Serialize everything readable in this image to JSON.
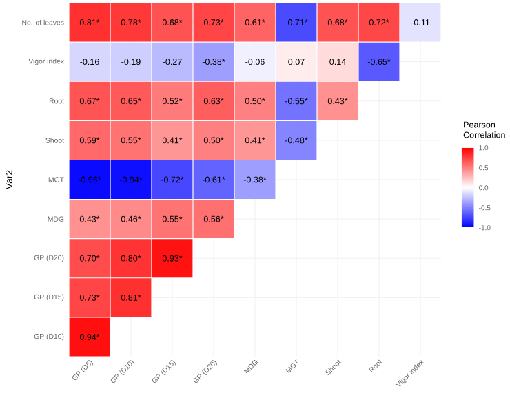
{
  "chart_data": {
    "type": "heatmap",
    "ylabel": "Var2",
    "clabel": "Pearson Correlation",
    "grid": true,
    "categories": [
      "GP (D5)",
      "GP (D10)",
      "GP (D15)",
      "GP (D20)",
      "MDG",
      "MGT",
      "Shoot",
      "Root",
      "Vigor index"
    ],
    "y_categories": [
      "No. of leaves",
      "Vigor index",
      "Root",
      "Shoot",
      "MGT",
      "MDG",
      "GP (D20)",
      "GP (D15)",
      "GP (D10)"
    ],
    "cells": [
      [
        0.81,
        0.78,
        0.68,
        0.73,
        0.61,
        -0.71,
        0.68,
        0.72,
        -0.11
      ],
      [
        -0.16,
        -0.19,
        -0.27,
        -0.38,
        -0.06,
        0.07,
        0.14,
        -0.65,
        null
      ],
      [
        0.67,
        0.65,
        0.52,
        0.63,
        0.5,
        -0.55,
        0.43,
        null,
        null
      ],
      [
        0.59,
        0.55,
        0.41,
        0.5,
        0.41,
        -0.48,
        null,
        null,
        null
      ],
      [
        -0.96,
        -0.94,
        -0.72,
        -0.61,
        -0.38,
        null,
        null,
        null,
        null
      ],
      [
        0.43,
        0.46,
        0.55,
        0.56,
        null,
        null,
        null,
        null,
        null
      ],
      [
        0.7,
        0.8,
        0.93,
        null,
        null,
        null,
        null,
        null,
        null
      ],
      [
        0.73,
        0.81,
        null,
        null,
        null,
        null,
        null,
        null,
        null
      ],
      [
        0.94,
        null,
        null,
        null,
        null,
        null,
        null,
        null,
        null
      ]
    ],
    "cell_labels": [
      [
        "0.81*",
        "0.78*",
        "0.68*",
        "0.73*",
        "0.61*",
        "-0.71*",
        "0.68*",
        "0.72*",
        "-0.11"
      ],
      [
        "-0.16",
        "-0.19",
        "-0.27",
        "-0.38*",
        "-0.06",
        "0.07",
        "0.14",
        "-0.65*",
        null
      ],
      [
        "0.67*",
        "0.65*",
        "0.52*",
        "0.63*",
        "0.50*",
        "-0.55*",
        "0.43*",
        null,
        null
      ],
      [
        "0.59*",
        "0.55*",
        "0.41*",
        "0.50*",
        "0.41*",
        "-0.48*",
        null,
        null,
        null
      ],
      [
        "-0.96*",
        "-0.94*",
        "-0.72*",
        "-0.61*",
        "-0.38*",
        null,
        null,
        null,
        null
      ],
      [
        "0.43*",
        "0.46*",
        "0.55*",
        "0.56*",
        null,
        null,
        null,
        null,
        null
      ],
      [
        "0.70*",
        "0.80*",
        "0.93*",
        null,
        null,
        null,
        null,
        null,
        null
      ],
      [
        "0.73*",
        "0.81*",
        null,
        null,
        null,
        null,
        null,
        null,
        null
      ],
      [
        "0.94*",
        null,
        null,
        null,
        null,
        null,
        null,
        null,
        null
      ]
    ],
    "clim": [
      -1,
      1
    ],
    "cticks": [
      {
        "value": -1,
        "label": "-1.0"
      },
      {
        "value": -0.5,
        "label": "-0.5"
      },
      {
        "value": 0,
        "label": "0.0"
      },
      {
        "value": 0.5,
        "label": "0.5"
      },
      {
        "value": 1,
        "label": "1.0"
      }
    ]
  }
}
